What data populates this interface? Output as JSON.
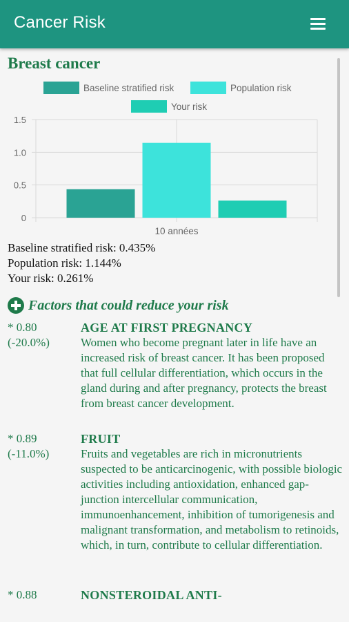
{
  "appbar": {
    "title": "Cancer Risk",
    "menu_icon": "menu-icon"
  },
  "page": {
    "title": "Breast cancer"
  },
  "chart_data": {
    "type": "bar",
    "categories": [
      "10 années"
    ],
    "series": [
      {
        "name": "Baseline stratified risk",
        "values": [
          0.435
        ],
        "color": "#2aa394"
      },
      {
        "name": "Population risk",
        "values": [
          1.144
        ],
        "color": "#3de3db"
      },
      {
        "name": "Your risk",
        "values": [
          0.261
        ],
        "color": "#1fcdb3"
      }
    ],
    "ylim": [
      0,
      1.5
    ],
    "yticks": [
      "0",
      "0.5",
      "1.0",
      "1.5"
    ],
    "xlabel": "",
    "ylabel": "",
    "legend": "top",
    "grid": true
  },
  "stats": {
    "baseline": "Baseline stratified risk: 0.435%",
    "population": "Population risk: 1.144%",
    "your": "Your risk: 0.261%"
  },
  "factors": {
    "heading": "Factors that could reduce your risk",
    "items": [
      {
        "multiplier": "* 0.80",
        "percent": "(-20.0%)",
        "name": "AGE AT FIRST PREGNANCY",
        "description": "Women who become pregnant later in life have an increased risk of breast cancer. It has been proposed that full cellular differentiation, which occurs in the gland during and after pregnancy, protects the breast from breast cancer development."
      },
      {
        "multiplier": "* 0.89",
        "percent": "(-11.0%)",
        "name": "FRUIT",
        "description": "Fruits and vegetables are rich in micronutrients suspected to be anticarcinogenic, with possible biologic activities including antioxidation, enhanced gap-junction intercellular communication, immunoenhancement, inhibition of tumorigenesis and malignant transformation, and metabolism to retinoids, which, in turn, contribute to cellular differentiation."
      },
      {
        "multiplier": "* 0.88",
        "percent": "",
        "name": "NONSTEROIDAL ANTI-",
        "description": ""
      }
    ]
  },
  "colors": {
    "appbar": "#1e9480",
    "accent": "#1e7a4a"
  }
}
